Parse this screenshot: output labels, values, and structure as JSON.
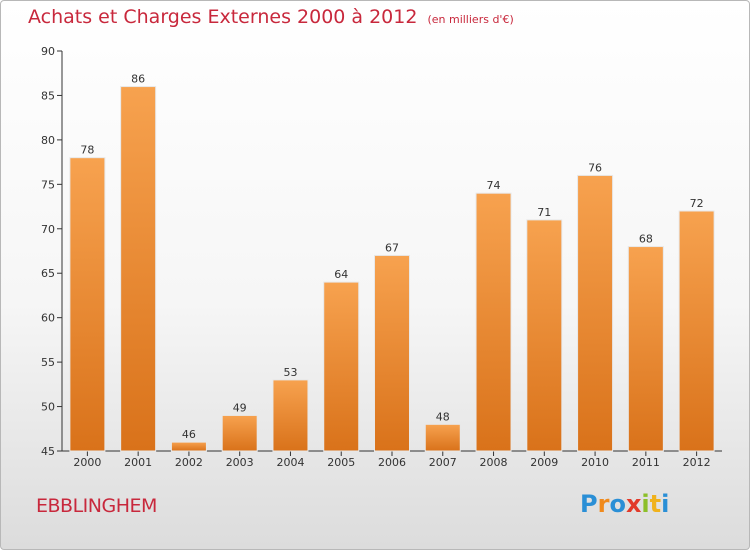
{
  "chart_data": {
    "type": "bar",
    "title": "Achats et Charges Externes 2000 à 2012",
    "subtitle": "(en milliers d'€)",
    "categories": [
      "2000",
      "2001",
      "2002",
      "2003",
      "2004",
      "2005",
      "2006",
      "2007",
      "2008",
      "2009",
      "2010",
      "2011",
      "2012"
    ],
    "values": [
      78,
      86,
      46,
      49,
      53,
      64,
      67,
      48,
      74,
      71,
      76,
      68,
      72
    ],
    "ylim": [
      45,
      90
    ],
    "yticks": [
      45,
      50,
      55,
      60,
      65,
      70,
      75,
      80,
      85,
      90
    ],
    "grid": false,
    "colors": {
      "bar_light": "#f7a24f",
      "bar_dark": "#d9721a",
      "title": "#c8283c",
      "axis": "#333333"
    }
  },
  "footer": {
    "location": "EBBLINGHEM"
  },
  "logo": {
    "letters": [
      "P",
      "r",
      "o",
      "x",
      "i",
      "t",
      "i"
    ],
    "colors": [
      "#2a8fd6",
      "#f08a1c",
      "#2a8fd6",
      "#e23a2a",
      "#8cbf2a",
      "#f0b21c",
      "#2a8fd6"
    ]
  }
}
